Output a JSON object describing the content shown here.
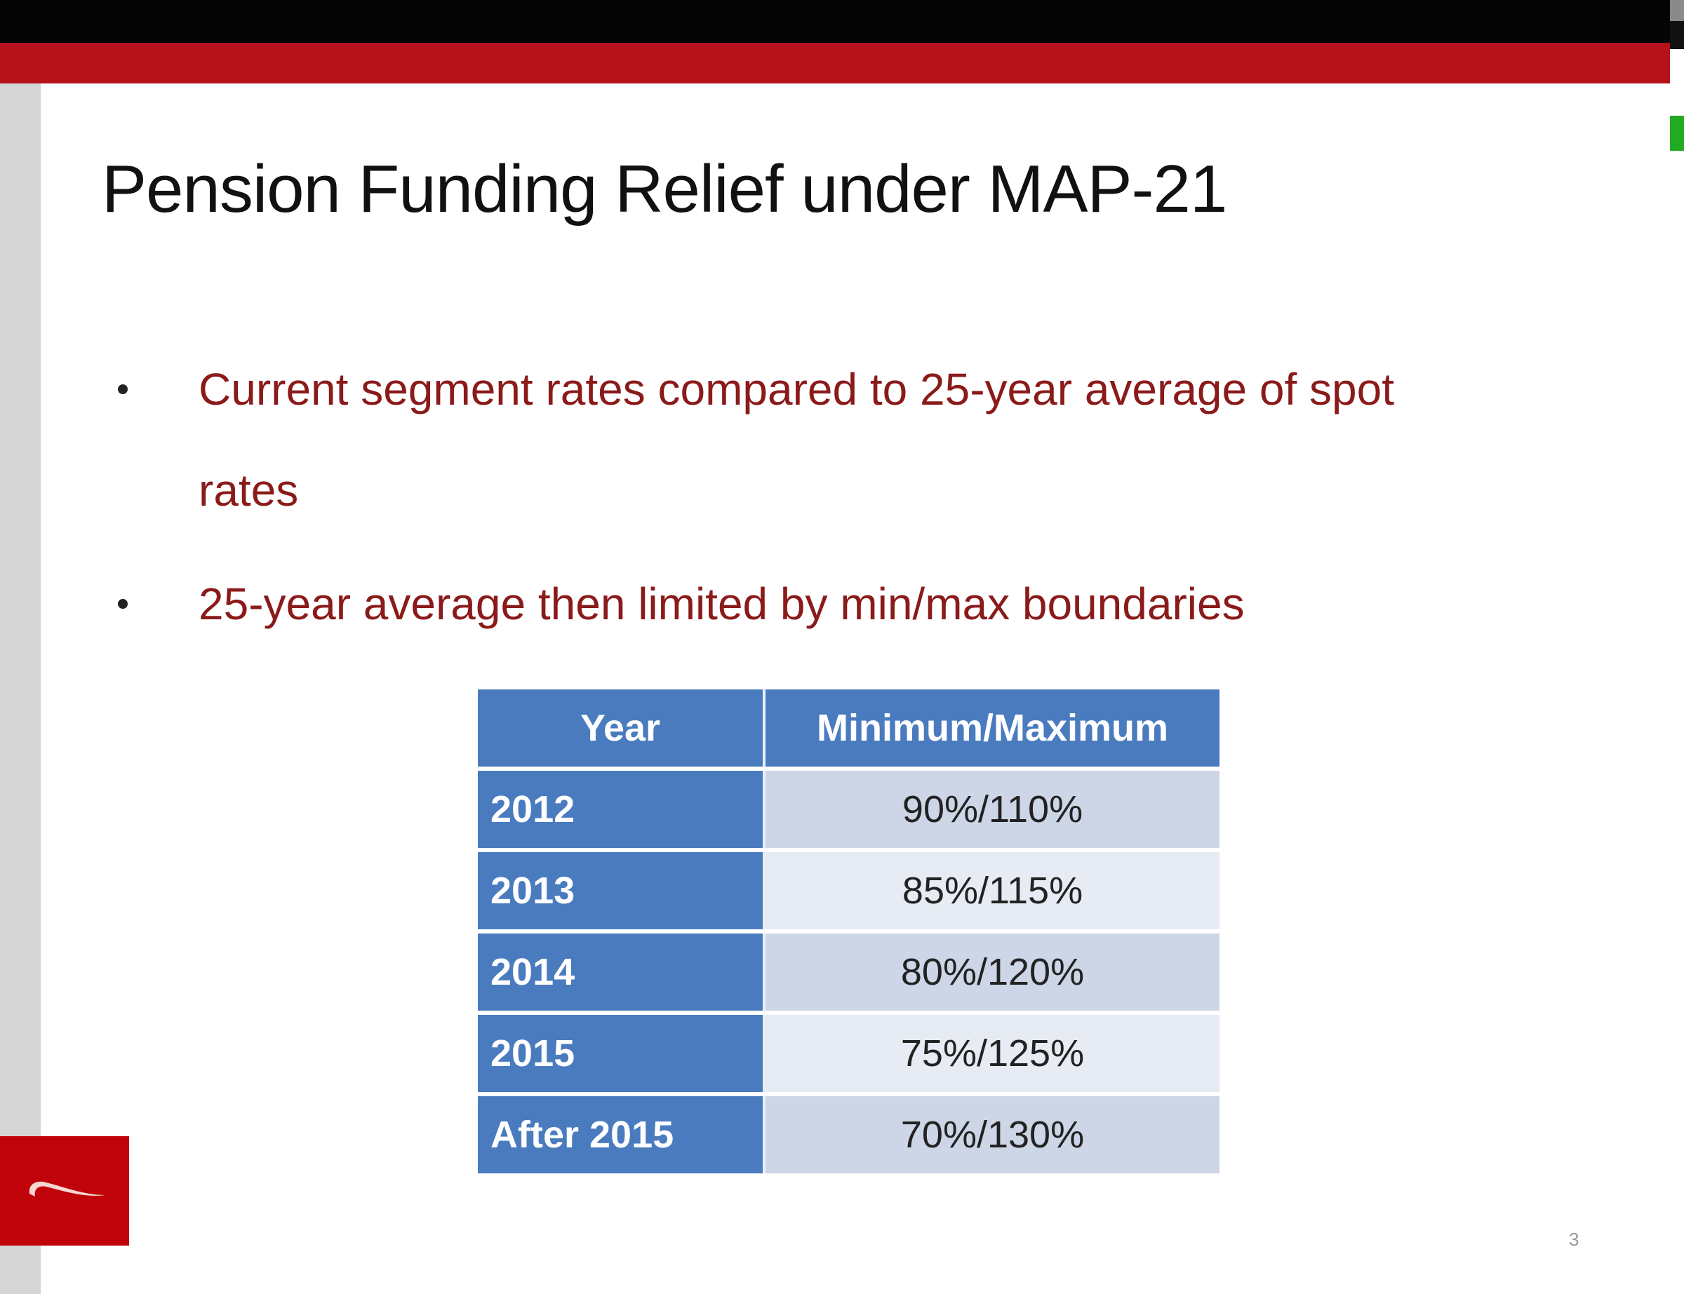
{
  "slide": {
    "title": "Pension Funding Relief under MAP-21",
    "bullets": [
      {
        "line1": "Current segment rates compared to 25-year average of spot",
        "line2": "rates"
      },
      {
        "line1": "25-year average then limited by min/max boundaries"
      }
    ],
    "table": {
      "headers": [
        "Year",
        "Minimum/Maximum"
      ],
      "rows": [
        {
          "year": "2012",
          "range": "90%/110%"
        },
        {
          "year": "2013",
          "range": "85%/115%"
        },
        {
          "year": "2014",
          "range": "80%/120%"
        },
        {
          "year": "2015",
          "range": "75%/125%"
        },
        {
          "year": "After 2015",
          "range": "70%/130%"
        }
      ]
    },
    "page_number": "3"
  },
  "colors": {
    "accent_red": "#b5121b",
    "table_blue": "#4a7bbf",
    "bullet_text": "#8b1a1a"
  }
}
